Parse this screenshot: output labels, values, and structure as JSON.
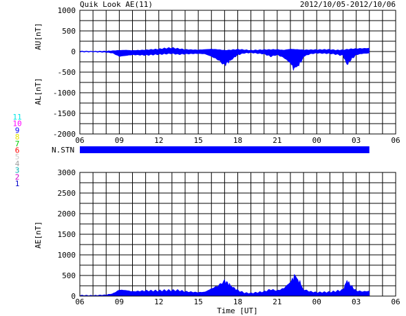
{
  "header": {
    "title": "Quik Look AE(11)",
    "date_range": "2012/10/05-2012/10/06"
  },
  "station_legend": {
    "items": [
      {
        "label": "11",
        "color": "#00e5e5"
      },
      {
        "label": "10",
        "color": "#ff00ff"
      },
      {
        "label": "9",
        "color": "#0000ff"
      },
      {
        "label": "8",
        "color": "#e5e500"
      },
      {
        "label": "7",
        "color": "#00cc00"
      },
      {
        "label": "6",
        "color": "#ff0000"
      },
      {
        "label": "5",
        "color": "#c8c8c8"
      },
      {
        "label": "4",
        "color": "#a0a0a0"
      },
      {
        "label": "3",
        "color": "#00b0b0"
      },
      {
        "label": "2",
        "color": "#cc00cc"
      },
      {
        "label": "1",
        "color": "#0000cc"
      }
    ]
  },
  "nstn": {
    "label": "N.STN"
  },
  "chart_data": [
    {
      "type": "area",
      "ylabel_top": "AU[nT]",
      "ylabel_bottom": "AL[nT]",
      "ylim": [
        -2000,
        1000
      ],
      "yticks": [
        "1000",
        "500",
        "0",
        "-500",
        "-1000",
        "-1500",
        "-2000"
      ],
      "xticks": [
        "06",
        "09",
        "12",
        "15",
        "18",
        "21",
        "00",
        "03",
        "06"
      ],
      "x_unit": "UT hour (06 on 2012/10/05 to 06 on 2012/10/06)",
      "data_end_hour": 28,
      "color": "#0000ff",
      "series": [
        {
          "name": "AU",
          "x": [
            6,
            7,
            8,
            8.5,
            9,
            9.5,
            10,
            11,
            12,
            12.5,
            13,
            13.5,
            14,
            15,
            16,
            16.5,
            17,
            17.5,
            18,
            19,
            20,
            21,
            21.5,
            22,
            22.5,
            23,
            24,
            25,
            25.5,
            26,
            26.5,
            27,
            28
          ],
          "values": [
            10,
            5,
            10,
            20,
            30,
            35,
            25,
            40,
            60,
            80,
            90,
            70,
            50,
            40,
            60,
            50,
            30,
            40,
            55,
            30,
            45,
            50,
            35,
            60,
            50,
            40,
            45,
            50,
            35,
            40,
            60,
            70,
            80
          ]
        },
        {
          "name": "AL",
          "x": [
            6,
            7,
            8,
            8.5,
            9,
            9.5,
            10,
            11,
            12,
            12.5,
            13,
            13.5,
            14,
            15,
            15.5,
            16,
            16.5,
            17,
            17.3,
            17.6,
            18,
            18.5,
            19,
            20,
            20.5,
            21,
            21.5,
            22,
            22.3,
            22.5,
            22.8,
            23,
            23.5,
            24,
            25,
            25.5,
            26,
            26.3,
            26.6,
            27,
            27.5,
            28
          ],
          "values": [
            -10,
            -10,
            -20,
            -40,
            -120,
            -100,
            -80,
            -90,
            -70,
            -60,
            -50,
            -70,
            -60,
            -50,
            -60,
            -120,
            -200,
            -330,
            -250,
            -180,
            -80,
            -40,
            -30,
            -60,
            -120,
            -80,
            -150,
            -280,
            -440,
            -380,
            -250,
            -120,
            -60,
            -40,
            -50,
            -70,
            -100,
            -320,
            -200,
            -80,
            -50,
            -40
          ]
        }
      ]
    },
    {
      "type": "area",
      "ylabel": "AE[nT]",
      "ylim": [
        0,
        3000
      ],
      "yticks": [
        "3000",
        "2500",
        "2000",
        "1500",
        "1000",
        "500",
        "0"
      ],
      "xticks": [
        "06",
        "09",
        "12",
        "15",
        "18",
        "21",
        "00",
        "03",
        "06"
      ],
      "xlabel": "Time [UT]",
      "data_end_hour": 28,
      "color": "#0000ff",
      "series": [
        {
          "name": "AE",
          "x": [
            6,
            7,
            8,
            8.5,
            9,
            9.5,
            10,
            11,
            12,
            12.5,
            13,
            13.5,
            14,
            15,
            15.5,
            16,
            16.5,
            17,
            17.3,
            17.6,
            18,
            18.5,
            19,
            20,
            20.5,
            21,
            21.5,
            22,
            22.3,
            22.5,
            22.8,
            23,
            23.5,
            24,
            25,
            25.5,
            26,
            26.3,
            26.6,
            27,
            27.5,
            28
          ],
          "values": [
            20,
            15,
            30,
            60,
            150,
            140,
            110,
            130,
            130,
            140,
            140,
            140,
            110,
            90,
            100,
            180,
            250,
            370,
            300,
            220,
            140,
            80,
            70,
            110,
            160,
            130,
            190,
            340,
            480,
            420,
            300,
            160,
            110,
            90,
            100,
            120,
            150,
            380,
            250,
            130,
            110,
            120
          ]
        }
      ]
    }
  ],
  "nstn_bar": {
    "start_hour": 6,
    "end_hour": 28,
    "color": "#0000ff"
  }
}
